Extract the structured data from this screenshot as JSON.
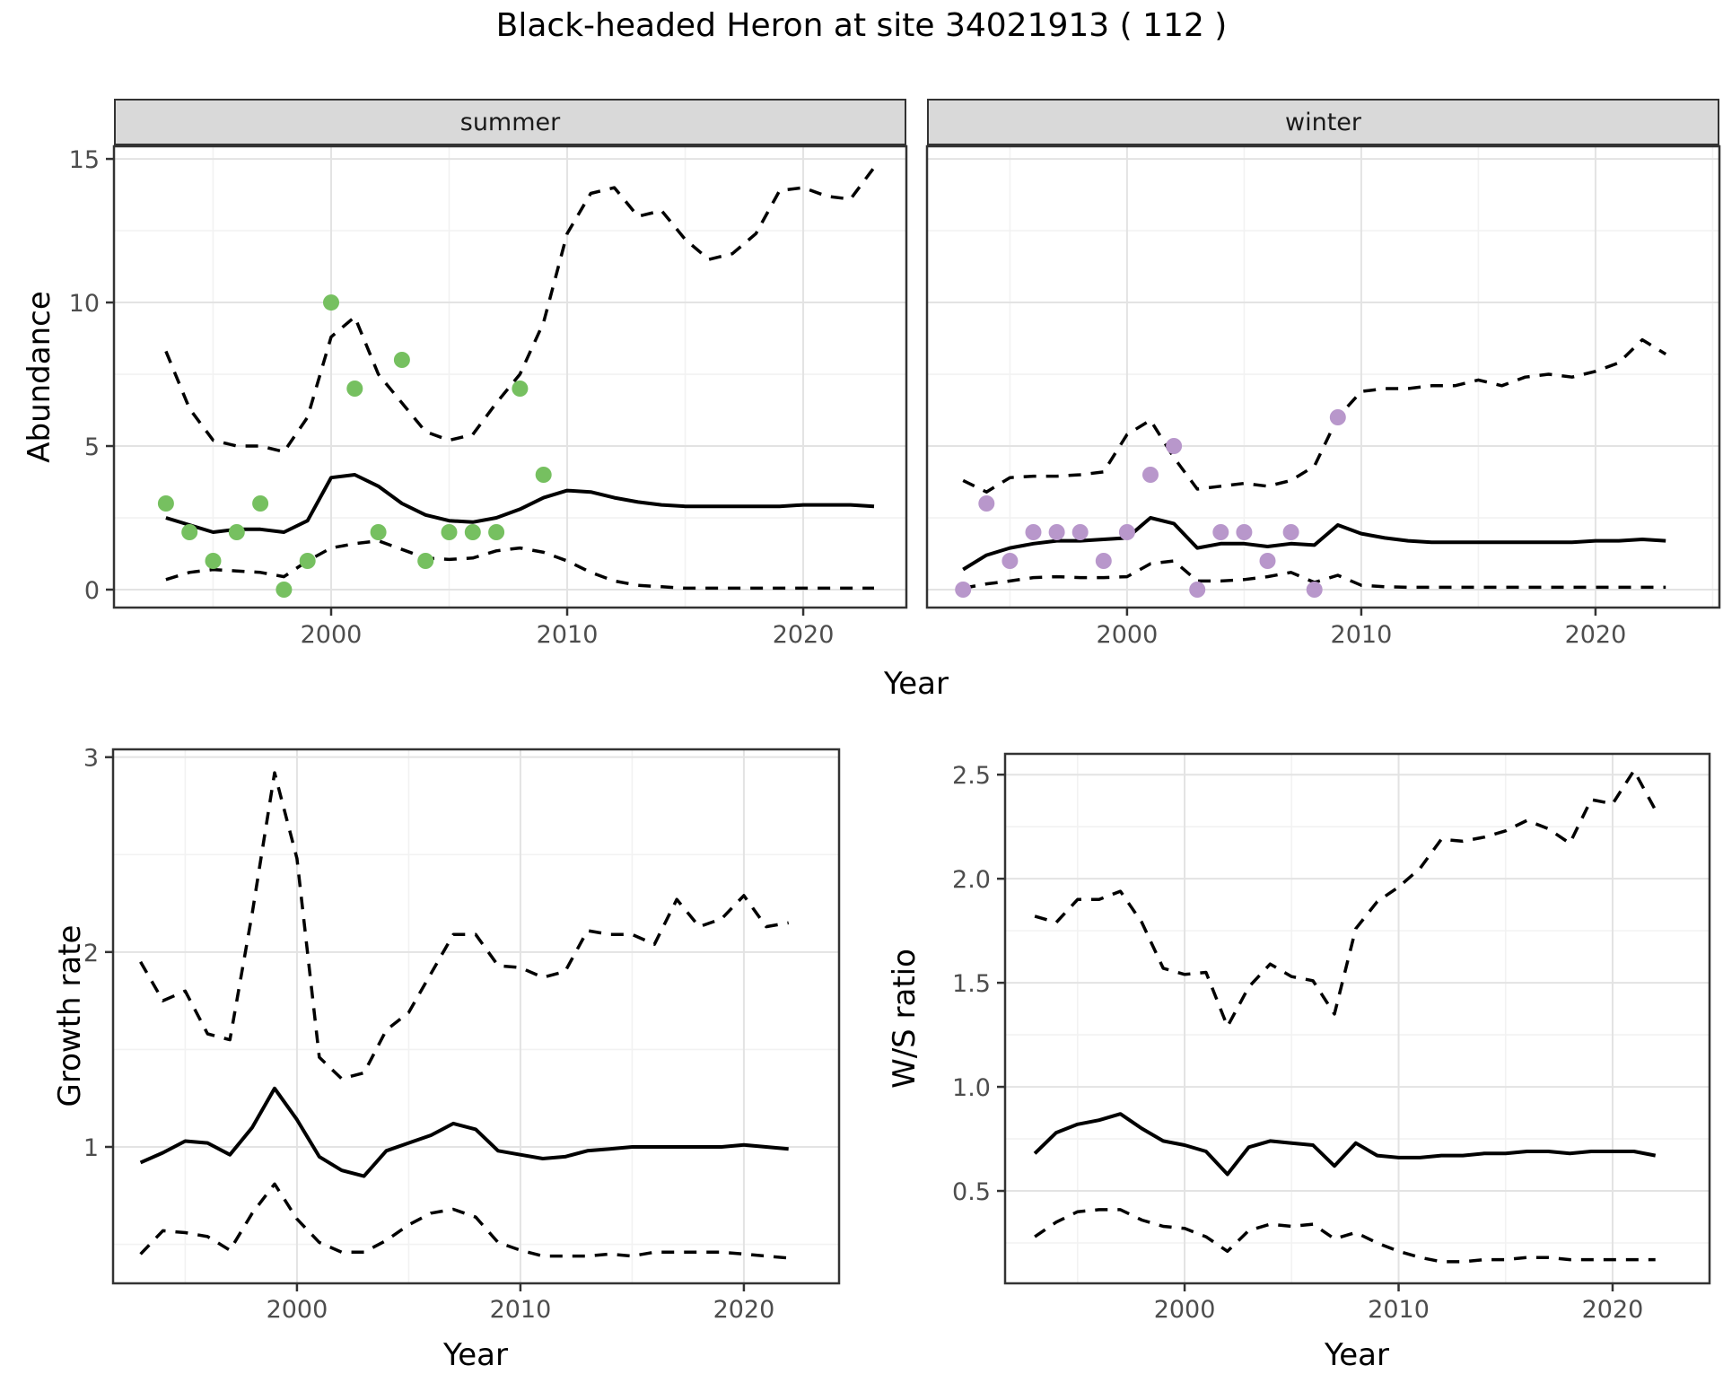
{
  "title": "Black-headed Heron at site 34021913 ( 112 )",
  "facets": {
    "summer": "summer",
    "winter": "winter"
  },
  "axis_labels": {
    "abundance": "Abundance",
    "year_top": "Year",
    "growth": "Growth rate",
    "year_growth": "Year",
    "ws": "W/S ratio",
    "year_ws": "Year"
  },
  "colors": {
    "summer_points": "#76c060",
    "winter_points": "#b897cb",
    "line": "#000000",
    "grid_major": "#e3e3e3",
    "grid_minor": "#f2f2f2",
    "strip_bg": "#d9d9d9",
    "panel_border": "#333333",
    "tick_text": "#4d4d4d"
  },
  "chart_data": [
    {
      "id": "abundance-summer",
      "type": "line",
      "facet_label": "summer",
      "ylabel": "Abundance",
      "xlabel": "Year",
      "x": [
        1993,
        1994,
        1995,
        1996,
        1997,
        1998,
        1999,
        2000,
        2001,
        2002,
        2003,
        2004,
        2005,
        2006,
        2007,
        2008,
        2009,
        2010,
        2011,
        2012,
        2013,
        2014,
        2015,
        2016,
        2017,
        2018,
        2019,
        2020,
        2021,
        2022,
        2023
      ],
      "series": [
        {
          "name": "mean",
          "style": "solid",
          "values": [
            2.5,
            2.25,
            2.0,
            2.1,
            2.1,
            2.0,
            2.4,
            3.9,
            4.0,
            3.6,
            3.0,
            2.6,
            2.4,
            2.35,
            2.5,
            2.8,
            3.2,
            3.45,
            3.4,
            3.2,
            3.05,
            2.95,
            2.9,
            2.9,
            2.9,
            2.9,
            2.9,
            2.95,
            2.95,
            2.95,
            2.9
          ]
        },
        {
          "name": "upper_ci",
          "style": "dashed",
          "values": [
            8.3,
            6.3,
            5.2,
            5.0,
            5.0,
            4.8,
            6.0,
            8.8,
            9.5,
            7.5,
            6.5,
            5.5,
            5.2,
            5.4,
            6.5,
            7.5,
            9.3,
            12.4,
            13.8,
            14.0,
            13.0,
            13.2,
            12.2,
            11.5,
            11.7,
            12.4,
            13.9,
            14.0,
            13.7,
            13.6,
            14.7
          ]
        },
        {
          "name": "lower_ci",
          "style": "dashed",
          "values": [
            0.35,
            0.6,
            0.7,
            0.65,
            0.6,
            0.45,
            1.0,
            1.45,
            1.6,
            1.7,
            1.4,
            1.1,
            1.05,
            1.1,
            1.35,
            1.45,
            1.3,
            1.0,
            0.6,
            0.3,
            0.15,
            0.1,
            0.05,
            0.05,
            0.05,
            0.05,
            0.05,
            0.05,
            0.05,
            0.05,
            0.05
          ]
        }
      ],
      "points": {
        "name": "observed-counts",
        "color_key": "summer_points",
        "x": [
          1993,
          1994,
          1995,
          1996,
          1997,
          1998,
          1999,
          2000,
          2001,
          2002,
          2003,
          2004,
          2005,
          2006,
          2007,
          2008,
          2009
        ],
        "y": [
          3,
          2,
          1,
          2,
          3,
          0,
          1,
          10,
          7,
          2,
          8,
          1,
          2,
          2,
          2,
          7,
          4
        ]
      },
      "xlim": [
        1990.8,
        2024.37
      ],
      "ylim": [
        -0.625,
        15.44
      ],
      "xticks": [
        2000,
        2010,
        2020
      ],
      "xtick_labels": [
        "2000",
        "2010",
        "2020"
      ],
      "yticks": [
        0,
        5,
        10,
        15
      ],
      "ytick_labels": [
        "0",
        "5",
        "10",
        "15"
      ]
    },
    {
      "id": "abundance-winter",
      "type": "line",
      "facet_label": "winter",
      "ylabel": "Abundance",
      "xlabel": "Year",
      "x": [
        1993,
        1994,
        1995,
        1996,
        1997,
        1998,
        1999,
        2000,
        2001,
        2002,
        2003,
        2004,
        2005,
        2006,
        2007,
        2008,
        2009,
        2010,
        2011,
        2012,
        2013,
        2014,
        2015,
        2016,
        2017,
        2018,
        2019,
        2020,
        2021,
        2022,
        2023
      ],
      "series": [
        {
          "name": "mean",
          "style": "solid",
          "values": [
            0.7,
            1.2,
            1.45,
            1.6,
            1.7,
            1.7,
            1.75,
            1.8,
            2.5,
            2.3,
            1.45,
            1.6,
            1.6,
            1.5,
            1.6,
            1.55,
            2.25,
            1.95,
            1.8,
            1.7,
            1.65,
            1.65,
            1.65,
            1.65,
            1.65,
            1.65,
            1.65,
            1.7,
            1.7,
            1.75,
            1.7
          ]
        },
        {
          "name": "upper_ci",
          "style": "dashed",
          "values": [
            3.8,
            3.4,
            3.9,
            3.95,
            3.95,
            4.0,
            4.1,
            5.4,
            5.9,
            4.6,
            3.5,
            3.6,
            3.7,
            3.6,
            3.8,
            4.3,
            6.0,
            6.9,
            7.0,
            7.0,
            7.1,
            7.1,
            7.3,
            7.1,
            7.4,
            7.5,
            7.4,
            7.6,
            7.9,
            8.7,
            8.2
          ]
        },
        {
          "name": "lower_ci",
          "style": "dashed",
          "values": [
            0.05,
            0.2,
            0.3,
            0.42,
            0.45,
            0.42,
            0.42,
            0.45,
            0.9,
            1.0,
            0.3,
            0.3,
            0.35,
            0.45,
            0.6,
            0.25,
            0.5,
            0.15,
            0.1,
            0.08,
            0.08,
            0.08,
            0.08,
            0.08,
            0.08,
            0.08,
            0.08,
            0.08,
            0.08,
            0.08,
            0.08
          ]
        }
      ],
      "points": {
        "name": "observed-counts",
        "color_key": "winter_points",
        "x": [
          1993,
          1994,
          1995,
          1996,
          1997,
          1998,
          1999,
          2000,
          2001,
          2002,
          2003,
          2004,
          2005,
          2006,
          2007,
          2008,
          2009
        ],
        "y": [
          0,
          3,
          1,
          2,
          2,
          2,
          1,
          2,
          4,
          5,
          0,
          2,
          2,
          1,
          2,
          0,
          6
        ]
      },
      "xlim": [
        1991.46,
        2025.29
      ],
      "ylim": [
        -0.625,
        15.44
      ],
      "xticks": [
        2000,
        2010,
        2020
      ],
      "xtick_labels": [
        "2000",
        "2010",
        "2020"
      ],
      "yticks": [
        0,
        5,
        10,
        15
      ],
      "ytick_labels": [
        "0",
        "5",
        "10",
        "15"
      ]
    },
    {
      "id": "growth-rate",
      "type": "line",
      "facet_label": "",
      "ylabel": "Growth rate",
      "xlabel": "Year",
      "x": [
        1993,
        1994,
        1995,
        1996,
        1997,
        1998,
        1999,
        2000,
        2001,
        2002,
        2003,
        2004,
        2005,
        2006,
        2007,
        2008,
        2009,
        2010,
        2011,
        2012,
        2013,
        2014,
        2015,
        2016,
        2017,
        2018,
        2019,
        2020,
        2021,
        2022
      ],
      "series": [
        {
          "name": "mean",
          "style": "solid",
          "values": [
            0.92,
            0.97,
            1.03,
            1.02,
            0.96,
            1.1,
            1.3,
            1.14,
            0.95,
            0.88,
            0.85,
            0.98,
            1.02,
            1.06,
            1.12,
            1.09,
            0.98,
            0.96,
            0.94,
            0.95,
            0.98,
            0.99,
            1.0,
            1.0,
            1.0,
            1.0,
            1.0,
            1.01,
            1.0,
            0.99
          ]
        },
        {
          "name": "upper_ci",
          "style": "dashed",
          "values": [
            1.95,
            1.75,
            1.8,
            1.58,
            1.55,
            2.2,
            2.92,
            2.48,
            1.46,
            1.35,
            1.38,
            1.6,
            1.69,
            1.89,
            2.09,
            2.09,
            1.93,
            1.92,
            1.87,
            1.9,
            2.11,
            2.09,
            2.09,
            2.04,
            2.27,
            2.13,
            2.17,
            2.29,
            2.13,
            2.15
          ]
        },
        {
          "name": "lower_ci",
          "style": "dashed",
          "values": [
            0.45,
            0.57,
            0.56,
            0.54,
            0.47,
            0.66,
            0.81,
            0.63,
            0.51,
            0.46,
            0.46,
            0.52,
            0.6,
            0.66,
            0.68,
            0.64,
            0.51,
            0.47,
            0.44,
            0.44,
            0.44,
            0.45,
            0.44,
            0.46,
            0.46,
            0.46,
            0.46,
            0.45,
            0.44,
            0.43
          ]
        }
      ],
      "xlim": [
        1991.77,
        2024.26
      ],
      "ylim": [
        0.3,
        3.04
      ],
      "xticks": [
        2000,
        2010,
        2020
      ],
      "xtick_labels": [
        "2000",
        "2010",
        "2020"
      ],
      "yticks": [
        1,
        2,
        3
      ],
      "ytick_labels": [
        "1",
        "2",
        "3"
      ]
    },
    {
      "id": "ws-ratio",
      "type": "line",
      "facet_label": "",
      "ylabel": "W/S ratio",
      "xlabel": "Year",
      "x": [
        1993,
        1994,
        1995,
        1996,
        1997,
        1998,
        1999,
        2000,
        2001,
        2002,
        2003,
        2004,
        2005,
        2006,
        2007,
        2008,
        2009,
        2010,
        2011,
        2012,
        2013,
        2014,
        2015,
        2016,
        2017,
        2018,
        2019,
        2020,
        2021,
        2022
      ],
      "series": [
        {
          "name": "mean",
          "style": "solid",
          "values": [
            0.68,
            0.78,
            0.82,
            0.84,
            0.87,
            0.8,
            0.74,
            0.72,
            0.69,
            0.58,
            0.71,
            0.74,
            0.73,
            0.72,
            0.62,
            0.73,
            0.67,
            0.66,
            0.66,
            0.67,
            0.67,
            0.68,
            0.68,
            0.69,
            0.69,
            0.68,
            0.69,
            0.69,
            0.69,
            0.67
          ]
        },
        {
          "name": "upper_ci",
          "style": "dashed",
          "values": [
            1.82,
            1.79,
            1.9,
            1.9,
            1.94,
            1.79,
            1.57,
            1.54,
            1.55,
            1.29,
            1.48,
            1.59,
            1.53,
            1.51,
            1.35,
            1.76,
            1.89,
            1.96,
            2.05,
            2.19,
            2.18,
            2.2,
            2.23,
            2.28,
            2.24,
            2.17,
            2.38,
            2.36,
            2.52,
            2.33
          ]
        },
        {
          "name": "lower_ci",
          "style": "dashed",
          "values": [
            0.28,
            0.35,
            0.4,
            0.41,
            0.41,
            0.36,
            0.33,
            0.32,
            0.28,
            0.21,
            0.31,
            0.34,
            0.33,
            0.34,
            0.27,
            0.3,
            0.25,
            0.21,
            0.18,
            0.16,
            0.16,
            0.17,
            0.17,
            0.18,
            0.18,
            0.17,
            0.17,
            0.17,
            0.17,
            0.17
          ]
        }
      ],
      "xlim": [
        1991.61,
        2024.53
      ],
      "ylim": [
        0.056,
        2.6
      ],
      "xticks": [
        2000,
        2010,
        2020
      ],
      "xtick_labels": [
        "2000",
        "2010",
        "2020"
      ],
      "yticks": [
        0.5,
        1.0,
        1.5,
        2.0,
        2.5
      ],
      "ytick_labels": [
        "0.5",
        "1.0",
        "1.5",
        "2.0",
        "2.5"
      ]
    }
  ]
}
